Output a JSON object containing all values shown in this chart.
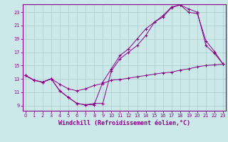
{
  "background_color": "#cce8e8",
  "grid_color": "#aacccc",
  "line_color": "#880088",
  "xlabel": "Windchill (Refroidissement éolien,°C)",
  "xlabel_fontsize": 6.0,
  "ylabel_ticks": [
    9,
    11,
    13,
    15,
    17,
    19,
    21,
    23
  ],
  "xlabel_ticks": [
    0,
    1,
    2,
    3,
    4,
    5,
    6,
    7,
    8,
    9,
    10,
    11,
    12,
    13,
    14,
    15,
    16,
    17,
    18,
    19,
    20,
    21,
    22,
    23
  ],
  "xlim": [
    -0.3,
    23.3
  ],
  "ylim": [
    8.2,
    24.2
  ],
  "line1_x": [
    0,
    1,
    2,
    3,
    4,
    5,
    6,
    7,
    8,
    9,
    10,
    11,
    12,
    13,
    14,
    15,
    16,
    17,
    18,
    19,
    20,
    21,
    22,
    23
  ],
  "line1_y": [
    13.5,
    12.8,
    12.5,
    13.0,
    11.2,
    10.2,
    9.3,
    9.1,
    9.1,
    12.5,
    14.5,
    16.5,
    17.5,
    19.0,
    20.5,
    21.5,
    22.5,
    23.8,
    24.1,
    23.5,
    23.0,
    18.0,
    16.8,
    15.2
  ],
  "line2_x": [
    0,
    1,
    2,
    3,
    4,
    5,
    6,
    7,
    8,
    9,
    10,
    11,
    12,
    13,
    14,
    15,
    16,
    17,
    18,
    19,
    20,
    21,
    22,
    23
  ],
  "line2_y": [
    13.5,
    12.8,
    12.5,
    13.0,
    11.2,
    10.2,
    9.3,
    9.1,
    9.3,
    9.3,
    14.2,
    16.0,
    17.0,
    18.0,
    19.5,
    21.5,
    22.3,
    23.7,
    24.1,
    23.0,
    22.8,
    18.7,
    17.1,
    15.2
  ],
  "line3_x": [
    0,
    1,
    2,
    3,
    4,
    5,
    6,
    7,
    8,
    9,
    10,
    11,
    12,
    13,
    14,
    15,
    16,
    17,
    18,
    19,
    20,
    21,
    22,
    23
  ],
  "line3_y": [
    13.5,
    12.8,
    12.5,
    13.0,
    12.2,
    11.5,
    11.2,
    11.5,
    12.0,
    12.3,
    12.8,
    12.9,
    13.1,
    13.3,
    13.5,
    13.7,
    13.9,
    14.0,
    14.3,
    14.5,
    14.8,
    15.0,
    15.1,
    15.2
  ]
}
